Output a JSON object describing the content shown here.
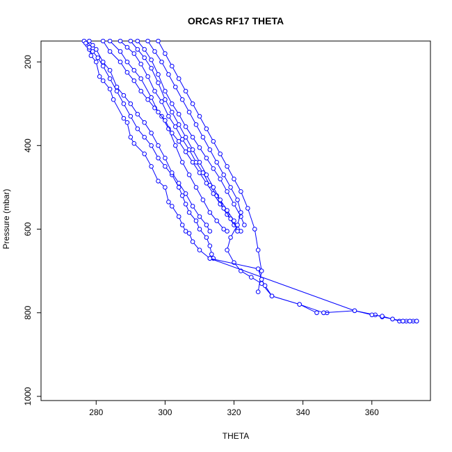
{
  "chart_data": {
    "type": "line",
    "title": "ORCAS RF17 THETA",
    "xlabel": "THETA",
    "ylabel": "Pressure (mbar)",
    "xlim": [
      264,
      377
    ],
    "ylim": [
      1010,
      150
    ],
    "y_reversed": true,
    "grid": false,
    "legend": "none",
    "marker": "open-circle",
    "color": "#0000ff",
    "x_ticks": [
      280,
      300,
      320,
      340,
      360
    ],
    "y_ticks": [
      200,
      400,
      600,
      800,
      1000
    ],
    "series": [
      {
        "x": [
          276.5,
          277.5,
          278,
          278.5,
          280,
          281,
          282,
          284,
          285,
          288,
          289,
          290,
          291,
          294,
          296,
          298,
          300,
          301,
          302,
          304,
          305,
          306,
          307,
          308,
          310,
          313,
          314
        ],
        "y": [
          150,
          160,
          170,
          185,
          200,
          235,
          245,
          265,
          290,
          335,
          345,
          380,
          395,
          420,
          450,
          485,
          500,
          535,
          545,
          570,
          590,
          605,
          610,
          630,
          650,
          670,
          670
        ]
      },
      {
        "x": [
          277,
          278,
          279,
          280.5,
          282,
          284,
          286,
          288,
          290,
          292,
          294,
          296,
          298,
          300,
          302,
          304,
          305,
          306,
          307,
          309,
          310,
          312,
          313,
          313.5
        ],
        "y": [
          155,
          165,
          175,
          190,
          210,
          240,
          270,
          300,
          330,
          360,
          380,
          400,
          430,
          450,
          470,
          500,
          520,
          540,
          560,
          580,
          600,
          620,
          640,
          660
        ]
      },
      {
        "x": [
          278,
          279,
          280,
          282,
          284,
          286,
          288,
          290,
          292,
          294,
          296,
          298,
          300,
          302,
          304,
          306,
          308,
          310,
          312,
          313
        ],
        "y": [
          150,
          160,
          170,
          200,
          220,
          260,
          280,
          300,
          325,
          345,
          370,
          400,
          430,
          465,
          490,
          515,
          545,
          570,
          590,
          605
        ]
      },
      {
        "x": [
          282,
          284,
          287,
          289,
          291,
          293,
          295,
          297,
          299,
          301,
          303,
          305,
          307,
          309,
          311,
          313,
          315,
          317,
          318
        ],
        "y": [
          150,
          175,
          200,
          225,
          245,
          270,
          290,
          310,
          330,
          360,
          400,
          440,
          470,
          500,
          530,
          560,
          580,
          600,
          605
        ]
      },
      {
        "x": [
          284,
          287,
          289,
          291,
          293,
          296,
          298,
          300,
          302,
          304,
          306,
          308,
          310,
          312,
          314,
          316,
          318,
          320
        ],
        "y": [
          150,
          175,
          200,
          220,
          240,
          285,
          320,
          340,
          370,
          390,
          415,
          440,
          465,
          490,
          515,
          540,
          565,
          590
        ]
      },
      {
        "x": [
          287,
          289,
          291,
          293,
          295,
          297,
          299,
          301,
          303,
          305,
          307,
          309,
          311,
          313,
          315,
          317,
          319,
          321,
          322
        ],
        "y": [
          150,
          165,
          180,
          205,
          235,
          270,
          295,
          330,
          355,
          385,
          410,
          440,
          465,
          495,
          520,
          550,
          575,
          600,
          605
        ]
      },
      {
        "x": [
          290,
          292,
          294,
          296,
          298,
          300,
          302,
          304,
          306,
          308,
          310,
          312,
          314,
          316,
          318,
          320,
          321
        ],
        "y": [
          150,
          170,
          190,
          215,
          250,
          290,
          320,
          350,
          380,
          410,
          440,
          470,
          500,
          530,
          555,
          580,
          605
        ]
      },
      {
        "x": [
          292,
          294,
          296,
          298,
          300,
          302,
          304,
          306,
          308,
          310,
          312,
          314,
          316,
          318,
          320,
          322,
          323
        ],
        "y": [
          150,
          170,
          195,
          230,
          270,
          300,
          325,
          355,
          380,
          405,
          430,
          455,
          480,
          510,
          540,
          570,
          590
        ]
      },
      {
        "x": [
          295,
          297,
          299,
          301,
          303,
          305,
          307,
          309,
          311,
          313,
          315,
          317,
          319,
          321,
          322,
          321,
          319,
          318,
          320,
          322,
          325,
          328,
          331,
          339,
          346,
          347
        ],
        "y": [
          150,
          175,
          200,
          230,
          260,
          290,
          320,
          350,
          380,
          410,
          440,
          470,
          500,
          530,
          560,
          590,
          620,
          650,
          680,
          700,
          715,
          730,
          760,
          780,
          800,
          800
        ]
      },
      {
        "x": [
          298,
          300,
          302,
          304,
          306,
          308,
          310,
          312,
          314,
          316,
          318,
          320,
          322,
          324,
          326,
          327,
          328,
          327
        ],
        "y": [
          150,
          180,
          210,
          240,
          270,
          300,
          330,
          360,
          390,
          420,
          450,
          480,
          510,
          550,
          600,
          650,
          700,
          750
        ]
      },
      {
        "x": [
          313,
          327,
          328,
          329,
          331,
          339,
          344
        ],
        "y": [
          670,
          695,
          720,
          735,
          760,
          780,
          800
        ]
      },
      {
        "x": [
          313,
          355,
          361,
          363,
          366,
          368,
          369,
          370,
          371,
          372,
          373
        ],
        "y": [
          670,
          795,
          805,
          810,
          815,
          820,
          820,
          820,
          820,
          820,
          820
        ]
      },
      {
        "x": [
          346,
          355,
          360,
          363,
          366,
          369,
          371,
          373
        ],
        "y": [
          800,
          795,
          805,
          808,
          815,
          820,
          820,
          820
        ]
      }
    ]
  }
}
